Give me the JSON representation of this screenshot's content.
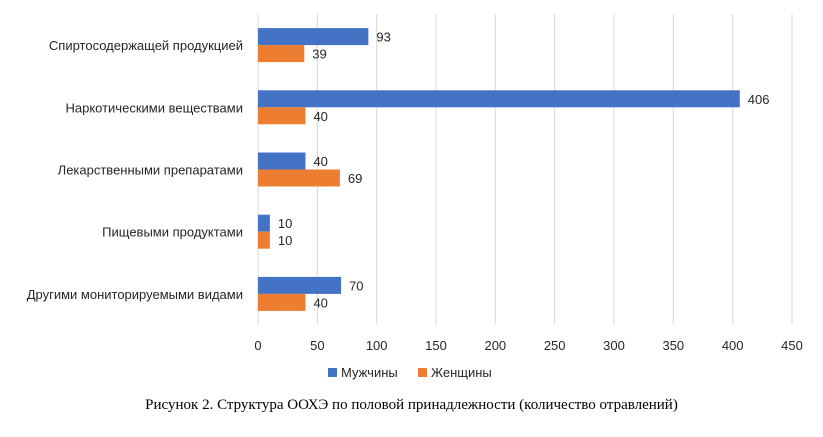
{
  "caption": "Рисунок 2. Структура ООХЭ по половой принадлежности (количество отравлений)",
  "chart_data": {
    "type": "bar",
    "orientation": "horizontal",
    "categories": [
      "Спиртосодержащей продукцией",
      "Наркотическими веществами",
      "Лекарственными препаратами",
      "Пищевыми продуктами",
      "Другими мониторируемыми видами"
    ],
    "series": [
      {
        "name": "Мужчины",
        "color": "#4472C4",
        "values": [
          93,
          406,
          40,
          10,
          70
        ]
      },
      {
        "name": "Женщины",
        "color": "#ED7D31",
        "values": [
          39,
          40,
          69,
          10,
          40
        ]
      }
    ],
    "xlim": [
      0,
      450
    ],
    "xticks": [
      0,
      50,
      100,
      150,
      200,
      250,
      300,
      350,
      400,
      450
    ],
    "grid": true,
    "data_labels": true,
    "legend_position": "bottom"
  }
}
